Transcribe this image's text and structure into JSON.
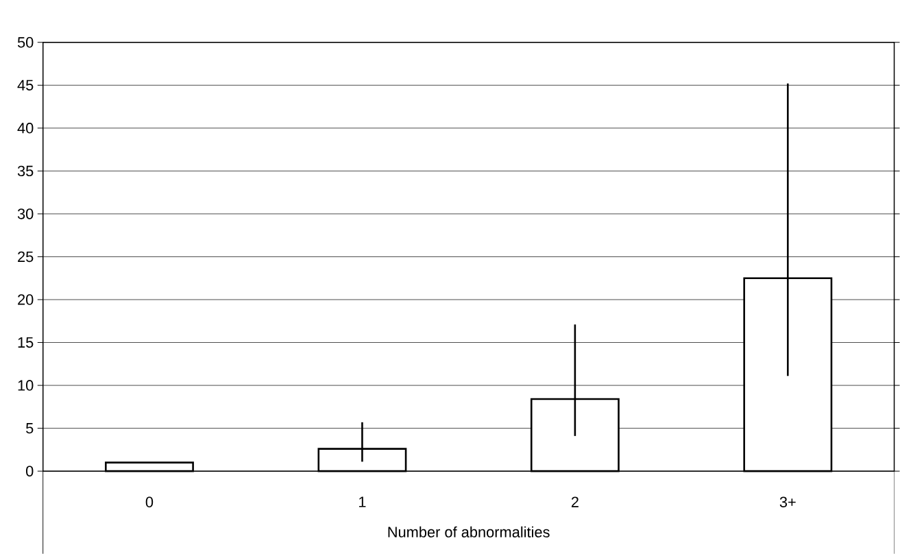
{
  "chart_data": {
    "type": "bar",
    "xlabel": "Number of abnormalities",
    "categories": [
      "0",
      "1",
      "2",
      "3+"
    ],
    "values": [
      1.0,
      2.6,
      8.4,
      22.5
    ],
    "errors": [
      null,
      [
        1.1,
        5.7
      ],
      [
        4.1,
        17.1
      ],
      [
        11.1,
        45.2
      ]
    ],
    "color": "#ffffff",
    "ylim": [
      0,
      50
    ],
    "yticks": [
      0,
      5,
      10,
      15,
      20,
      25,
      30,
      35,
      40,
      45,
      50
    ],
    "grid": "y"
  }
}
